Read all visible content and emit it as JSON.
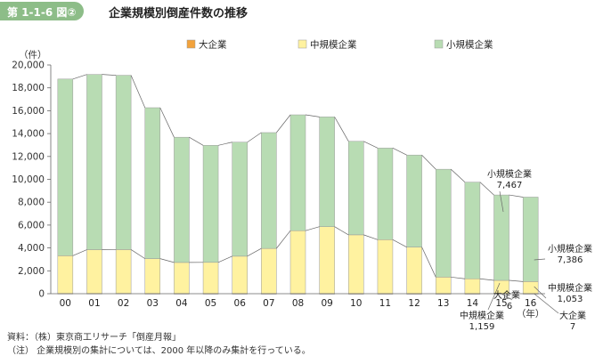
{
  "header": {
    "figure_number": "第 1-1-6 図②",
    "title": "企業規模別倒産件数の推移"
  },
  "chart_data": {
    "type": "bar",
    "stacked": true,
    "categories": [
      "00",
      "01",
      "02",
      "03",
      "04",
      "05",
      "06",
      "07",
      "08",
      "09",
      "10",
      "11",
      "12",
      "13",
      "14",
      "15",
      "16"
    ],
    "series": [
      {
        "name": "大企業",
        "color": "#f2a23c",
        "values": [
          20,
          21,
          27,
          14,
          12,
          10,
          9,
          7,
          10,
          8,
          5,
          5,
          5,
          3,
          4,
          6,
          7
        ]
      },
      {
        "name": "中規模企業",
        "color": "#fff2a0",
        "values": [
          3300,
          3830,
          3830,
          3050,
          2720,
          2730,
          3270,
          3950,
          5500,
          5850,
          5140,
          4720,
          4070,
          1450,
          1300,
          1159,
          1053
        ]
      },
      {
        "name": "小規模企業",
        "color": "#b8dcb3",
        "values": [
          15450,
          15320,
          15240,
          13200,
          10950,
          10230,
          9970,
          10130,
          10130,
          9600,
          8180,
          8010,
          8050,
          9430,
          8450,
          7467,
          7386
        ]
      }
    ],
    "yunit": "（件）",
    "xunit": "（年）",
    "ylim": [
      0,
      20000
    ],
    "yticks": [
      "0",
      "2,000",
      "4,000",
      "6,000",
      "8,000",
      "10,000",
      "12,000",
      "14,000",
      "16,000",
      "18,000",
      "20,000"
    ],
    "legend_position": "top",
    "callouts": {
      "small_2015_label": "小規模企業",
      "small_2015_value": "7,467",
      "large_2015_label": "大企業",
      "large_2015_value": "6",
      "medium_2015_label": "中規模企業",
      "medium_2015_value": "1,159",
      "small_2016_label": "小規模企業",
      "small_2016_value": "7,386",
      "medium_2016_label": "中規模企業",
      "medium_2016_value": "1,053",
      "large_2016_label": "大企業",
      "large_2016_value": "7"
    }
  },
  "notes": {
    "source": "資料：（株）東京商工リサーチ「倒産月報」",
    "note": "（注） 企業規模別の集計については、2000 年以降のみ集計を行っている。"
  }
}
